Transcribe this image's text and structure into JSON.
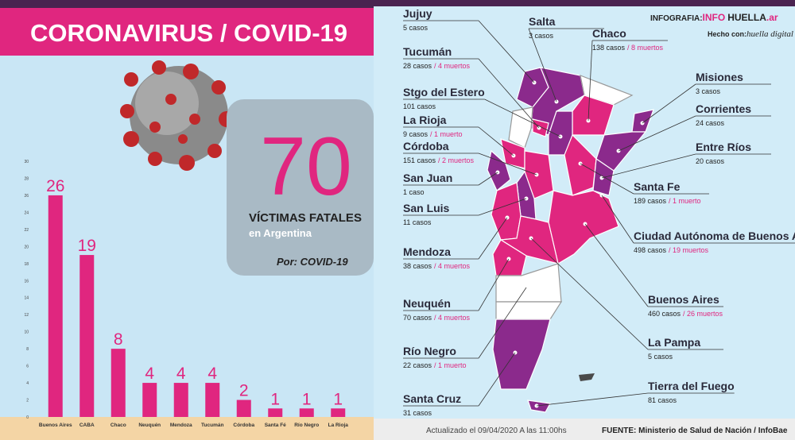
{
  "header": {
    "title": "CORONAVIRUS / COVID-19"
  },
  "highlight": {
    "number": "70",
    "label": "VÍCTIMAS FATALES",
    "sublabel": "en Argentina",
    "by": "Por: COVID-19"
  },
  "brand": {
    "prefix": "INFOGRAFIA:",
    "info": "INFO",
    "huella": "HUELLA",
    "domain": ".ar",
    "credit": "Hecho con:",
    "credit_name": "huella digital"
  },
  "chart_data": {
    "type": "bar",
    "categories": [
      "Buenos Aires",
      "CABA",
      "Chaco",
      "Neuquén",
      "Mendoza",
      "Tucumán",
      "Córdoba",
      "Santa Fé",
      "Río Negro",
      "La Rioja"
    ],
    "values": [
      26,
      19,
      8,
      4,
      4,
      4,
      2,
      1,
      1,
      1
    ],
    "color": "#e0267f",
    "ylim": [
      0,
      30
    ],
    "yticks": [
      0,
      2,
      4,
      6,
      8,
      10,
      12,
      14,
      16,
      18,
      20,
      22,
      24,
      26,
      28,
      30
    ],
    "grid": false
  },
  "map": {
    "regions": [
      {
        "name": "Jujuy",
        "cases": "5 casos"
      },
      {
        "name": "Salta",
        "cases": "3 casos"
      },
      {
        "name": "Chaco",
        "cases": "138 casos",
        "deaths": "/ 8 muertos"
      },
      {
        "name": "Tucumán",
        "cases": "28 casos",
        "deaths": "/ 4 muertos"
      },
      {
        "name": "Misiones",
        "cases": "3 casos"
      },
      {
        "name": "Stgo del Estero",
        "cases": "101 casos"
      },
      {
        "name": "Corrientes",
        "cases": "24 casos"
      },
      {
        "name": "La Rioja",
        "cases": "9 casos",
        "deaths": "/ 1 muerto"
      },
      {
        "name": "Córdoba",
        "cases": "151 casos",
        "deaths": "/ 2 muertos"
      },
      {
        "name": "Entre Ríos",
        "cases": "20 casos"
      },
      {
        "name": "San Juan",
        "cases": "1 caso"
      },
      {
        "name": "Santa Fe",
        "cases": "189 casos",
        "deaths": "/ 1 muerto"
      },
      {
        "name": "San Luis",
        "cases": "11 casos"
      },
      {
        "name": "Ciudad Autónoma de Buenos Aires",
        "cases": "498 casos",
        "deaths": "/ 19 muertos"
      },
      {
        "name": "Mendoza",
        "cases": "38 casos",
        "deaths": "/ 4 muertos"
      },
      {
        "name": "Buenos Aires",
        "cases": "460 casos",
        "deaths": "/ 26 muertos"
      },
      {
        "name": "Neuquén",
        "cases": "70 casos",
        "deaths": "/ 4 muertos"
      },
      {
        "name": "La Pampa",
        "cases": "5 casos"
      },
      {
        "name": "Río Negro",
        "cases": "22 casos",
        "deaths": "/ 1 muerto"
      },
      {
        "name": "Tierra del Fuego",
        "cases": "81 casos"
      },
      {
        "name": "Santa Cruz",
        "cases": "31 casos"
      }
    ]
  },
  "footer": {
    "updated": "Actualizado el 09/04/2020 A las 11:00hs",
    "source_label": "FUENTE:",
    "source": "Ministerio de Salud de Nación / InfoBae"
  }
}
